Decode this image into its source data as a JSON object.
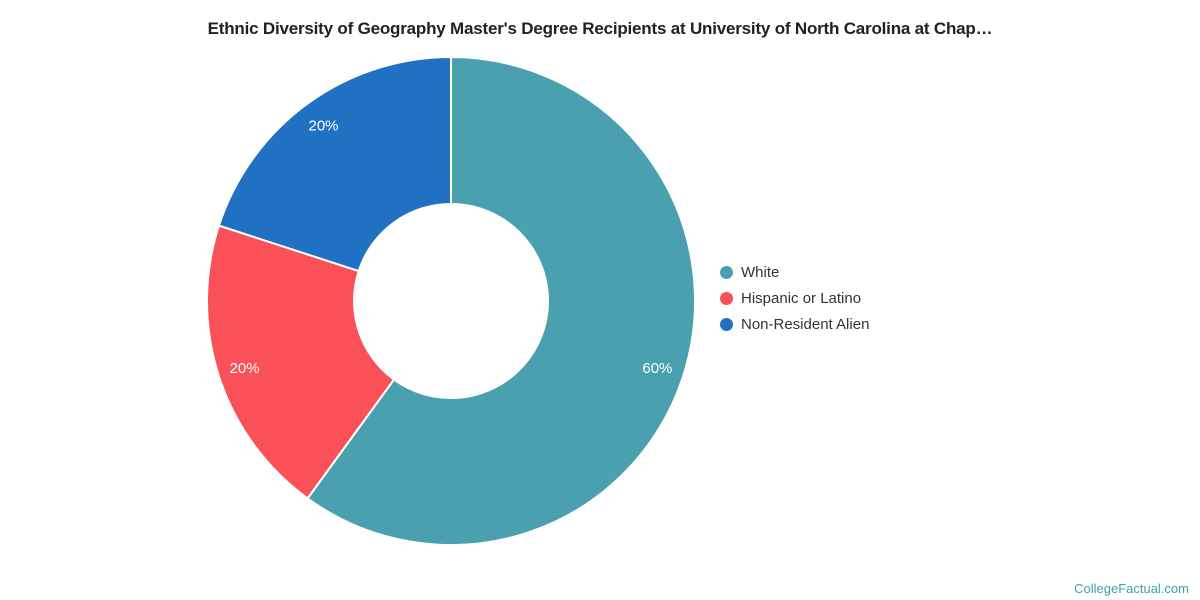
{
  "page": {
    "title": "Ethnic Diversity of Geography Master's Degree Recipients at University of North Carolina at Chap…",
    "watermark": "CollegeFactual.com"
  },
  "colors": {
    "background": "#ffffff",
    "title_text": "#212121",
    "legend_text": "#333333",
    "slice_label_text": "#ffffff",
    "watermark_text": "#3fa1ad",
    "slice_divider": "#ffffff"
  },
  "chart_data": {
    "type": "pie",
    "subtype": "donut",
    "title": "Ethnic Diversity of Geography Master's Degree Recipients at University of North Carolina at Chap…",
    "legend_position": "right",
    "start_angle_deg": 0,
    "direction": "clockwise",
    "inner_radius_ratio": 0.4,
    "slices": [
      {
        "label": "White",
        "value": 60,
        "percent_label": "60%",
        "color": "#4aa0af"
      },
      {
        "label": "Hispanic or Latino",
        "value": 20,
        "percent_label": "20%",
        "color": "#fa5058"
      },
      {
        "label": "Non-Resident Alien",
        "value": 20,
        "percent_label": "20%",
        "color": "#2071c1"
      }
    ]
  }
}
